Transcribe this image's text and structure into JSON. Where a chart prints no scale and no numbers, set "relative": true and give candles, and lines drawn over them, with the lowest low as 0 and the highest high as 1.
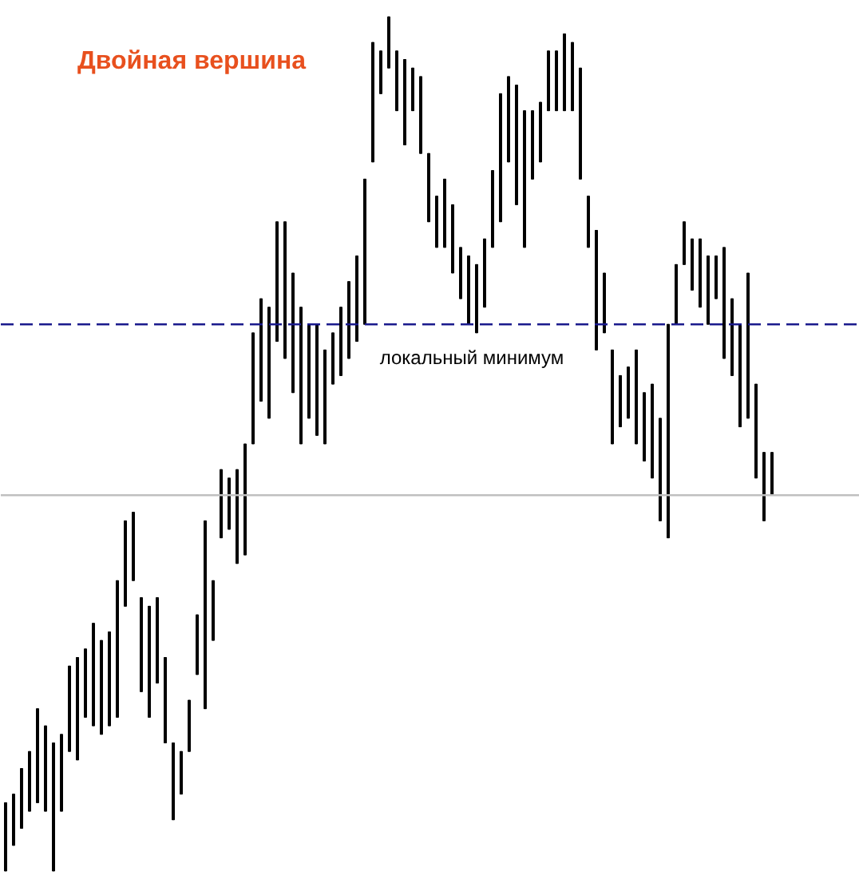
{
  "chart_data": {
    "type": "candlestick",
    "title": "Двойная вершина",
    "relative": true,
    "color": "#000000",
    "categories": [
      null,
      null,
      null,
      null,
      null,
      null,
      null,
      null,
      null,
      null,
      null,
      null,
      null,
      null,
      null,
      null,
      null,
      null,
      null,
      null,
      null,
      null,
      null,
      null,
      null,
      null,
      null,
      null,
      null,
      null,
      null,
      null,
      null,
      null,
      null,
      null,
      null,
      null,
      null,
      null,
      null,
      null,
      null,
      null,
      null,
      null,
      null,
      null,
      null,
      null,
      null,
      null,
      null,
      null,
      null,
      null,
      null,
      null,
      null,
      null,
      null,
      null,
      null,
      null,
      null,
      null,
      null,
      null,
      null,
      null,
      null,
      null,
      null,
      null,
      null,
      null,
      null,
      null,
      null,
      null,
      null,
      null,
      null,
      null,
      null,
      null,
      null,
      null,
      null,
      null,
      null,
      null,
      null,
      null,
      null,
      null,
      null
    ],
    "ohlc": [
      [
        0.0,
        0.08,
        0.0,
        0.08
      ],
      [
        0.03,
        0.09,
        0.03,
        0.09
      ],
      [
        0.05,
        0.12,
        0.05,
        0.12
      ],
      [
        0.07,
        0.14,
        0.07,
        0.14
      ],
      [
        0.08,
        0.19,
        0.08,
        0.19
      ],
      [
        0.07,
        0.17,
        0.07,
        0.17
      ],
      [
        0.0,
        0.15,
        0.0,
        0.15
      ],
      [
        0.07,
        0.16,
        0.07,
        0.16
      ],
      [
        0.14,
        0.24,
        0.14,
        0.24
      ],
      [
        0.13,
        0.25,
        0.13,
        0.25
      ],
      [
        0.18,
        0.26,
        0.18,
        0.26
      ],
      [
        0.17,
        0.29,
        0.17,
        0.29
      ],
      [
        0.16,
        0.27,
        0.16,
        0.27
      ],
      [
        0.17,
        0.28,
        0.17,
        0.28
      ],
      [
        0.18,
        0.34,
        0.18,
        0.34
      ],
      [
        0.31,
        0.41,
        0.31,
        0.41
      ],
      [
        0.34,
        0.42,
        0.34,
        0.42
      ],
      [
        0.21,
        0.32,
        0.21,
        0.32
      ],
      [
        0.18,
        0.31,
        0.18,
        0.31
      ],
      [
        0.22,
        0.32,
        0.22,
        0.32
      ],
      [
        0.15,
        0.25,
        0.15,
        0.25
      ],
      [
        0.06,
        0.15,
        0.06,
        0.15
      ],
      [
        0.09,
        0.14,
        0.09,
        0.14
      ],
      [
        0.14,
        0.2,
        0.14,
        0.2
      ],
      [
        0.23,
        0.3,
        0.23,
        0.3
      ],
      [
        0.19,
        0.41,
        0.19,
        0.41
      ],
      [
        0.27,
        0.34,
        0.27,
        0.34
      ],
      [
        0.39,
        0.47,
        0.39,
        0.47
      ],
      [
        0.4,
        0.46,
        0.4,
        0.46
      ],
      [
        0.36,
        0.47,
        0.36,
        0.47
      ],
      [
        0.37,
        0.5,
        0.37,
        0.5
      ],
      [
        0.5,
        0.63,
        0.5,
        0.63
      ],
      [
        0.55,
        0.67,
        0.55,
        0.67
      ],
      [
        0.53,
        0.66,
        0.53,
        0.66
      ],
      [
        0.62,
        0.76,
        0.62,
        0.76
      ],
      [
        0.6,
        0.76,
        0.6,
        0.76
      ],
      [
        0.56,
        0.7,
        0.56,
        0.7
      ],
      [
        0.5,
        0.66,
        0.5,
        0.66
      ],
      [
        0.53,
        0.64,
        0.53,
        0.64
      ],
      [
        0.51,
        0.64,
        0.51,
        0.64
      ],
      [
        0.5,
        0.61,
        0.5,
        0.61
      ],
      [
        0.57,
        0.63,
        0.57,
        0.63
      ],
      [
        0.58,
        0.66,
        0.58,
        0.66
      ],
      [
        0.6,
        0.69,
        0.6,
        0.69
      ],
      [
        0.62,
        0.72,
        0.62,
        0.72
      ],
      [
        0.64,
        0.81,
        0.64,
        0.81
      ],
      [
        0.83,
        0.97,
        0.83,
        0.97
      ],
      [
        0.91,
        0.96,
        0.91,
        0.96
      ],
      [
        0.94,
        1.0,
        0.94,
        1.0
      ],
      [
        0.89,
        0.96,
        0.89,
        0.96
      ],
      [
        0.85,
        0.95,
        0.85,
        0.95
      ],
      [
        0.89,
        0.94,
        0.89,
        0.94
      ],
      [
        0.84,
        0.93,
        0.84,
        0.93
      ],
      [
        0.76,
        0.84,
        0.76,
        0.84
      ],
      [
        0.73,
        0.79,
        0.73,
        0.79
      ],
      [
        0.73,
        0.81,
        0.73,
        0.81
      ],
      [
        0.7,
        0.78,
        0.7,
        0.78
      ],
      [
        0.67,
        0.73,
        0.67,
        0.73
      ],
      [
        0.64,
        0.72,
        0.64,
        0.72
      ],
      [
        0.63,
        0.71,
        0.63,
        0.71
      ],
      [
        0.66,
        0.74,
        0.66,
        0.74
      ],
      [
        0.73,
        0.82,
        0.73,
        0.82
      ],
      [
        0.76,
        0.91,
        0.76,
        0.91
      ],
      [
        0.83,
        0.93,
        0.83,
        0.93
      ],
      [
        0.78,
        0.92,
        0.78,
        0.92
      ],
      [
        0.73,
        0.89,
        0.73,
        0.89
      ],
      [
        0.81,
        0.89,
        0.81,
        0.89
      ],
      [
        0.83,
        0.9,
        0.83,
        0.9
      ],
      [
        0.89,
        0.96,
        0.89,
        0.96
      ],
      [
        0.89,
        0.96,
        0.89,
        0.96
      ],
      [
        0.89,
        0.98,
        0.89,
        0.98
      ],
      [
        0.89,
        0.97,
        0.89,
        0.97
      ],
      [
        0.81,
        0.94,
        0.81,
        0.94
      ],
      [
        0.73,
        0.79,
        0.73,
        0.79
      ],
      [
        0.61,
        0.75,
        0.61,
        0.75
      ],
      [
        0.63,
        0.7,
        0.63,
        0.7
      ],
      [
        0.5,
        0.61,
        0.5,
        0.61
      ],
      [
        0.52,
        0.58,
        0.52,
        0.58
      ],
      [
        0.53,
        0.59,
        0.53,
        0.59
      ],
      [
        0.5,
        0.61,
        0.5,
        0.61
      ],
      [
        0.48,
        0.56,
        0.48,
        0.56
      ],
      [
        0.46,
        0.57,
        0.46,
        0.57
      ],
      [
        0.41,
        0.53,
        0.41,
        0.53
      ],
      [
        0.39,
        0.64,
        0.39,
        0.64
      ],
      [
        0.64,
        0.71,
        0.64,
        0.71
      ],
      [
        0.71,
        0.76,
        0.71,
        0.76
      ],
      [
        0.68,
        0.74,
        0.68,
        0.74
      ],
      [
        0.66,
        0.74,
        0.66,
        0.74
      ],
      [
        0.64,
        0.72,
        0.64,
        0.72
      ],
      [
        0.67,
        0.72,
        0.67,
        0.72
      ],
      [
        0.6,
        0.73,
        0.6,
        0.73
      ],
      [
        0.58,
        0.67,
        0.58,
        0.67
      ],
      [
        0.52,
        0.64,
        0.52,
        0.64
      ],
      [
        0.53,
        0.7,
        0.53,
        0.7
      ],
      [
        0.46,
        0.57,
        0.46,
        0.57
      ],
      [
        0.41,
        0.49,
        0.41,
        0.49
      ],
      [
        0.44,
        0.49,
        0.44,
        0.49
      ]
    ],
    "ref_lines": [
      {
        "axis": "y",
        "value": 0.64,
        "label": "локальный минимум",
        "color": "#1a1a8c",
        "line_style": "dashed"
      },
      {
        "axis": "y",
        "value": 0.44,
        "label": null,
        "color": "#c0c0c0",
        "line_style": "solid"
      }
    ]
  }
}
